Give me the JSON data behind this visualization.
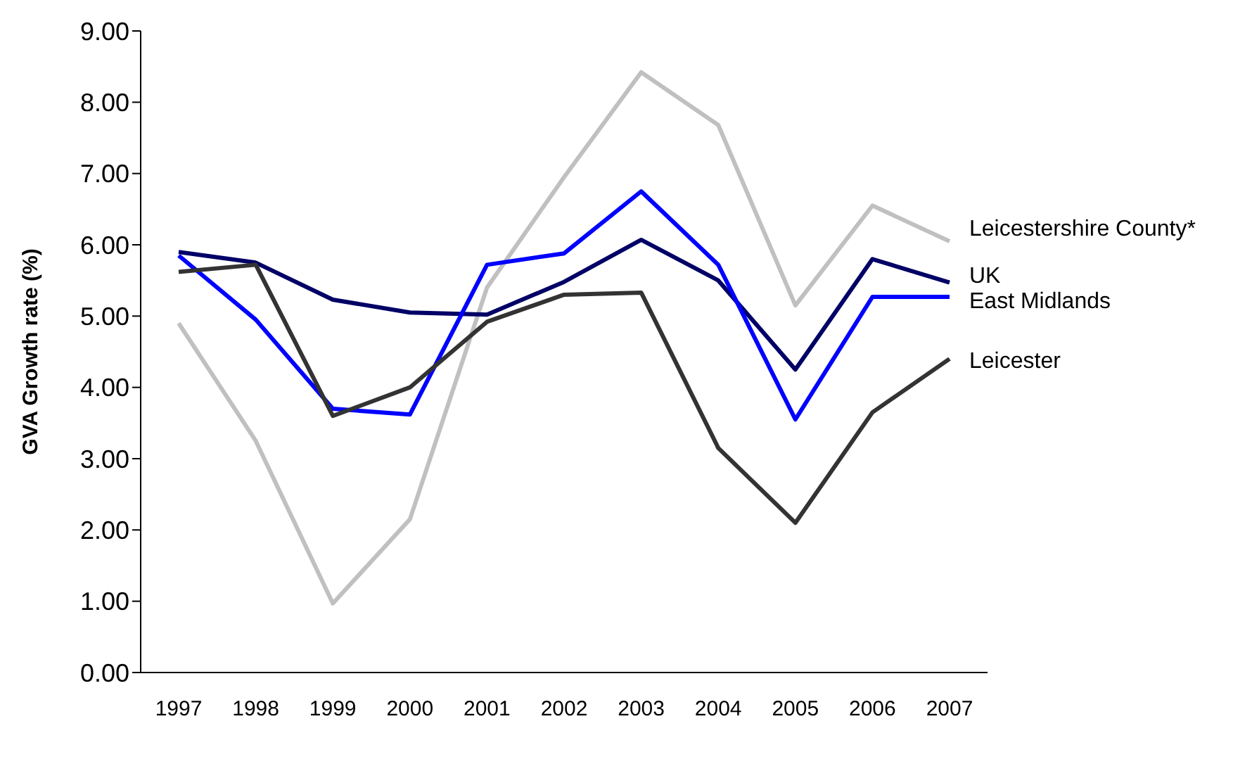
{
  "chart_data": {
    "type": "line",
    "ylabel": "GVA Growth rate (%)",
    "categories": [
      "1997",
      "1998",
      "1999",
      "2000",
      "2001",
      "2002",
      "2003",
      "2004",
      "2005",
      "2006",
      "2007"
    ],
    "series": [
      {
        "name": "Leicestershire County*",
        "color": "#c0c0c0",
        "values": [
          4.9,
          3.25,
          0.97,
          2.15,
          5.4,
          6.95,
          8.42,
          7.68,
          5.15,
          6.55,
          6.05
        ]
      },
      {
        "name": "UK",
        "color": "#000066",
        "values": [
          5.9,
          5.75,
          5.23,
          5.05,
          5.02,
          5.48,
          6.07,
          5.5,
          4.25,
          5.8,
          5.47
        ]
      },
      {
        "name": "East Midlands",
        "color": "#0000ff",
        "values": [
          5.85,
          4.95,
          3.7,
          3.62,
          5.72,
          5.88,
          6.75,
          5.72,
          3.55,
          5.27,
          5.27
        ]
      },
      {
        "name": "Leicester",
        "color": "#333333",
        "values": [
          5.62,
          5.72,
          3.6,
          4.0,
          4.92,
          5.3,
          5.33,
          3.15,
          2.1,
          3.65,
          4.4
        ]
      }
    ],
    "ylim": [
      0,
      9
    ],
    "yticks": [
      {
        "value": 0,
        "label": "0.00"
      },
      {
        "value": 1,
        "label": "1.00"
      },
      {
        "value": 2,
        "label": "2.00"
      },
      {
        "value": 3,
        "label": "3.00"
      },
      {
        "value": 4,
        "label": "4.00"
      },
      {
        "value": 5,
        "label": "5.00"
      },
      {
        "value": 6,
        "label": "6.00"
      },
      {
        "value": 7,
        "label": "7.00"
      },
      {
        "value": 8,
        "label": "8.00"
      },
      {
        "value": 9,
        "label": "9.00"
      }
    ],
    "grid": false,
    "legend": "right",
    "marker": "none",
    "line_style": "solid"
  }
}
